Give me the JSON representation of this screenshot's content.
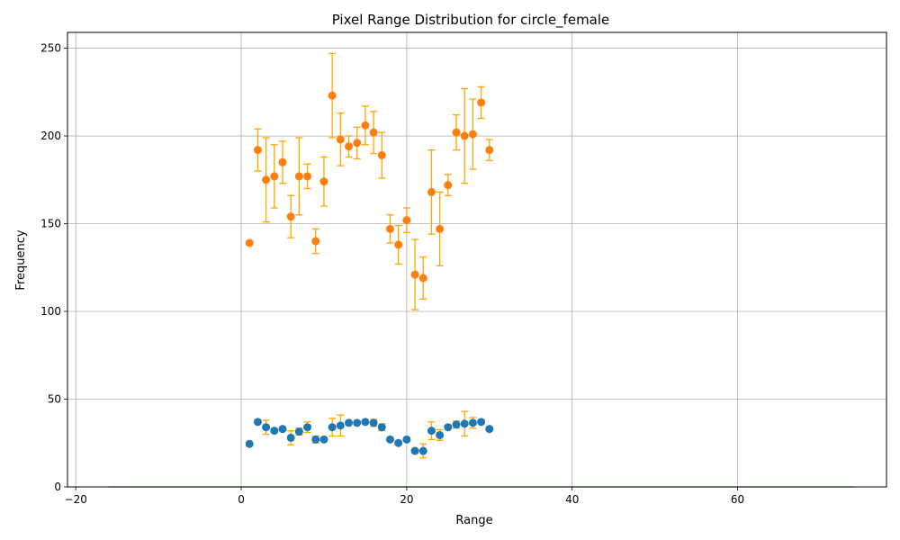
{
  "chart_data": {
    "type": "scatter",
    "title": "Pixel Range Distribution for circle_female",
    "xlabel": "Range",
    "ylabel": "Frequency",
    "xlim": [
      -21,
      78
    ],
    "ylim": [
      0,
      259
    ],
    "xticks": [
      -20,
      0,
      20,
      40,
      60
    ],
    "yticks": [
      0,
      50,
      100,
      150,
      200,
      250
    ],
    "xtick_labels": [
      "−20",
      "0",
      "20",
      "40",
      "60"
    ],
    "ytick_labels": [
      "0",
      "50",
      "100",
      "150",
      "200",
      "250"
    ],
    "grid": true,
    "baseline": {
      "x": [
        -16,
        74
      ],
      "y": 0,
      "color": "#2ca02c"
    },
    "series": [
      {
        "color": "#ff7f0e",
        "error_color": "#ffa500",
        "x": [
          1,
          2,
          3,
          4,
          5,
          6,
          7,
          8,
          9,
          10,
          11,
          12,
          13,
          14,
          15,
          16,
          17,
          18,
          19,
          20,
          21,
          22,
          23,
          24,
          25,
          26,
          27,
          28,
          29,
          30
        ],
        "y": [
          139,
          192,
          175,
          177,
          185,
          154,
          177,
          177,
          140,
          174,
          223,
          198,
          194,
          196,
          206,
          202,
          189,
          147,
          138,
          152,
          121,
          119,
          168,
          147,
          172,
          202,
          200,
          201,
          219,
          192
        ],
        "err": [
          1,
          12,
          24,
          18,
          12,
          12,
          22,
          7,
          7,
          14,
          24,
          15,
          6,
          9,
          11,
          12,
          13,
          8,
          11,
          7,
          20,
          12,
          24,
          21,
          6,
          10,
          27,
          20,
          9,
          6
        ]
      },
      {
        "color": "#1f77b4",
        "error_color": "#ffa500",
        "x": [
          1,
          2,
          3,
          4,
          5,
          6,
          7,
          8,
          9,
          10,
          11,
          12,
          13,
          14,
          15,
          16,
          17,
          18,
          19,
          20,
          21,
          22,
          23,
          24,
          25,
          26,
          27,
          28,
          29,
          30
        ],
        "y": [
          24.5,
          37,
          34,
          32,
          33,
          28,
          31.5,
          34,
          27,
          27,
          34,
          35,
          36.5,
          36.5,
          37,
          36.5,
          34,
          27,
          25,
          27,
          20.5,
          20.5,
          32,
          29.5,
          34,
          35.5,
          36,
          36.5,
          37,
          33
        ],
        "err": [
          0.5,
          1,
          4,
          1,
          1,
          4,
          2,
          3,
          2,
          1,
          5,
          6,
          1,
          1,
          1,
          2,
          2,
          1,
          1,
          1,
          1,
          4,
          5,
          3,
          1,
          2,
          7,
          3,
          1,
          1
        ]
      }
    ]
  }
}
